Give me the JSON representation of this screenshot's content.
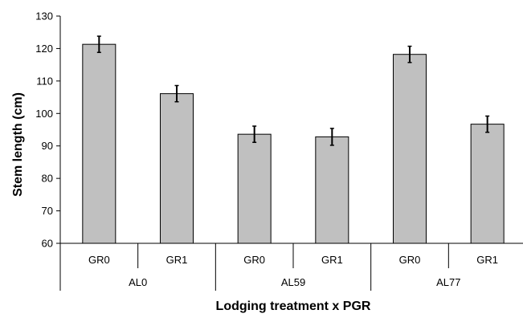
{
  "chart_data": {
    "type": "bar",
    "title": "",
    "xlabel": "Lodging treatment x PGR",
    "ylabel": "Stem length (cm)",
    "ylim": [
      60,
      130
    ],
    "yticks": [
      60,
      70,
      80,
      90,
      100,
      110,
      120,
      130
    ],
    "grid": false,
    "legend": "none",
    "bar_color": "#c0c0c0",
    "groups": [
      {
        "label": "AL0",
        "categories": [
          "GR0",
          "GR1"
        ]
      },
      {
        "label": "AL59",
        "categories": [
          "GR0",
          "GR1"
        ]
      },
      {
        "label": "AL77",
        "categories": [
          "GR0",
          "GR1"
        ]
      }
    ],
    "values": [
      121.3,
      106.1,
      93.6,
      92.8,
      118.2,
      96.7
    ],
    "errors": [
      2.5,
      2.5,
      2.5,
      2.6,
      2.5,
      2.5
    ]
  }
}
